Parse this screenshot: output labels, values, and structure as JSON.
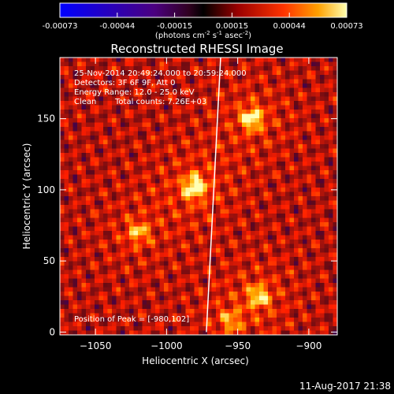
{
  "colorbar": {
    "ticks": [
      "-0.00073",
      "-0.00044",
      "-0.00015",
      "0.00015",
      "0.00044",
      "0.00073"
    ],
    "units_prefix": "(photons cm",
    "units_exp1": "-2",
    "units_mid": " s",
    "units_exp2": "-1",
    "units_mid2": " asec",
    "units_exp3": "-2",
    "units_suffix": ")",
    "min": -0.00073,
    "max": 0.00073
  },
  "annotations": {
    "time_range": "25-Nov-2014 20:49:24.000 to 20:59:24.000",
    "detectors": "Detectors: 3F 6F 9F, Att 0",
    "energy": "Energy Range: 12.0 - 25.0 keV",
    "clean_label": "Clean",
    "total_counts": "Total counts: 7.26E+03",
    "peak": "Position of Peak = [-980,102]"
  },
  "footer": {
    "date": "11-Aug-2017 21:38"
  },
  "chart_data": {
    "type": "heatmap",
    "title": "Reconstructed RHESSI Image",
    "xlabel": "Heliocentric X (arcsec)",
    "ylabel": "Heliocentric Y (arcsec)",
    "xlim": [
      -1075,
      -880
    ],
    "ylim": [
      -2,
      193
    ],
    "x_ticks": [
      -1050,
      -1000,
      -950,
      -900
    ],
    "y_ticks": [
      0,
      50,
      100,
      150
    ],
    "x_tick_labels": [
      "−1050",
      "−1000",
      "−950",
      "−900"
    ],
    "y_tick_labels": [
      "0",
      "50",
      "100",
      "150"
    ],
    "colormap": "hot",
    "peak_position": [
      -980,
      102
    ],
    "sources": [
      {
        "x": -980,
        "y": 102,
        "intensity": 1.0
      },
      {
        "x": -940,
        "y": 150,
        "intensity": 0.85
      },
      {
        "x": -935,
        "y": 25,
        "intensity": 0.7
      },
      {
        "x": -1020,
        "y": 70,
        "intensity": 0.6
      },
      {
        "x": -955,
        "y": 8,
        "intensity": 0.5
      }
    ],
    "limb_line": [
      [
        -972,
        0
      ],
      [
        -962,
        193
      ]
    ]
  }
}
